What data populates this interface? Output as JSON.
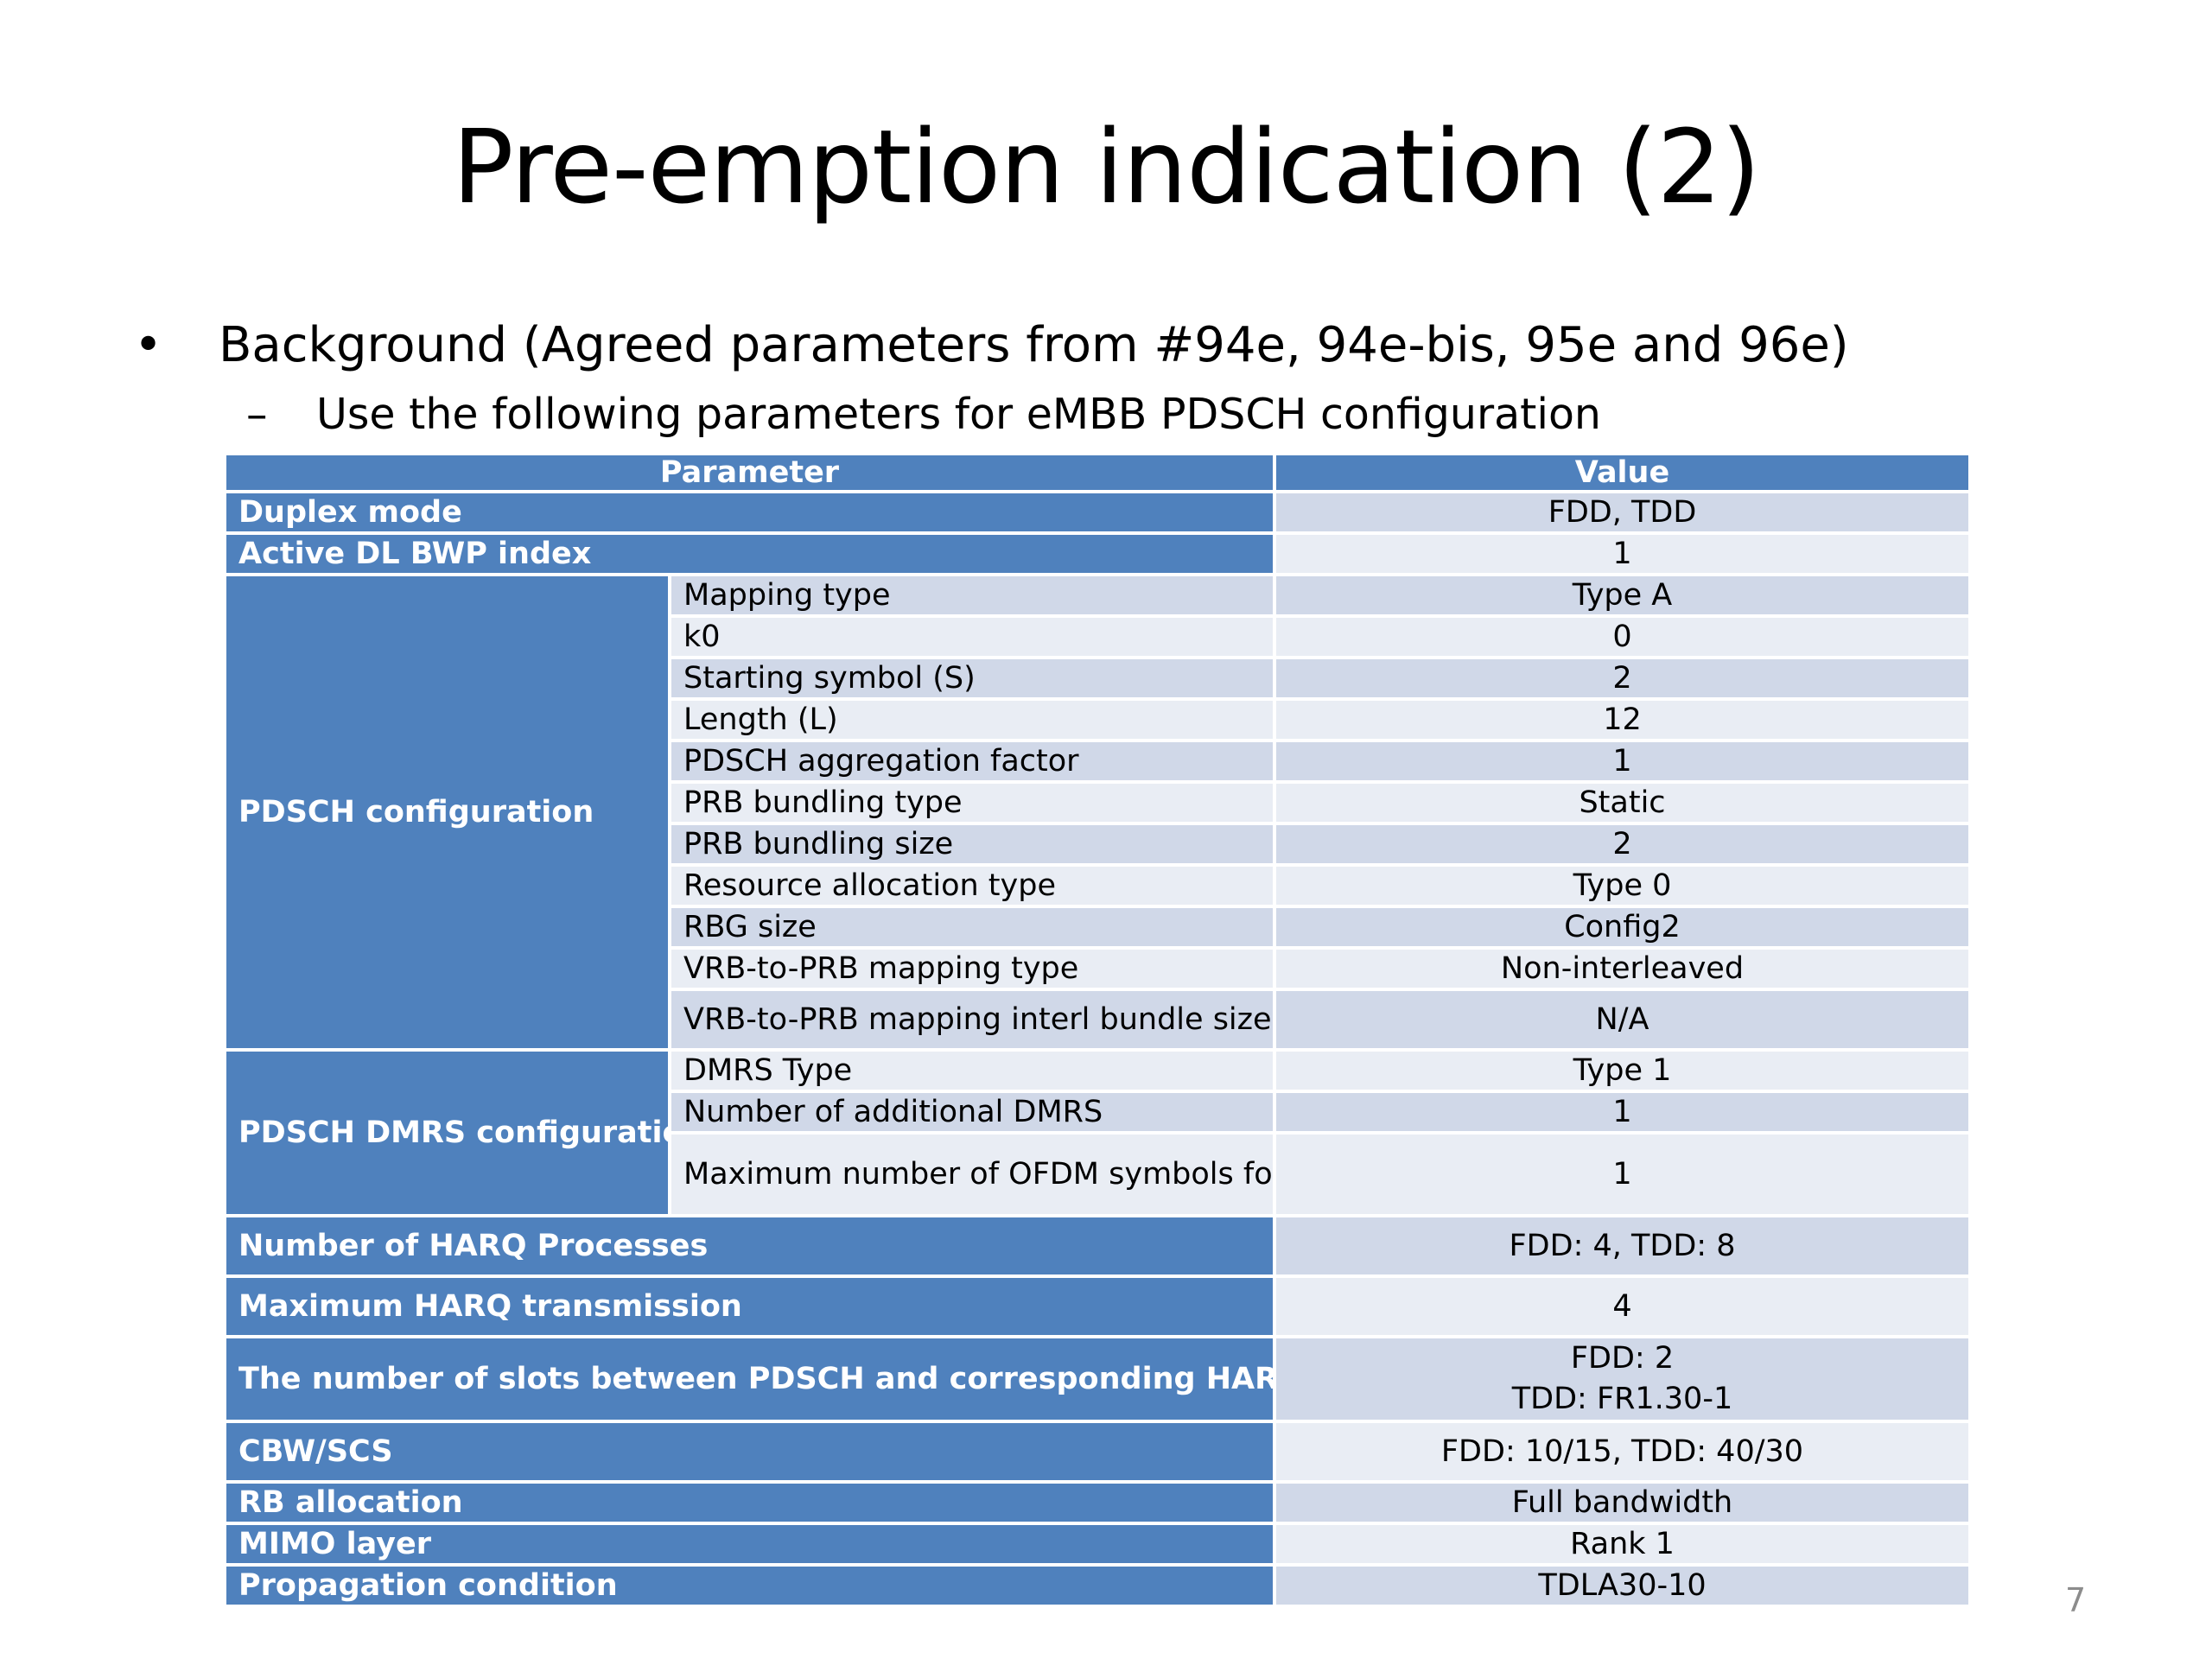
{
  "slide": {
    "title": "Pre-emption indication (2)",
    "bullet": "Background (Agreed parameters from #94e, 94e-bis, 95e and 96e)",
    "bullet_marker": "•",
    "sub_marker": "–",
    "sub_bullet": "Use the following parameters for eMBB PDSCH configuration",
    "page_number": "7"
  },
  "table": {
    "headers": {
      "parameter": "Parameter",
      "value": "Value"
    },
    "rows": {
      "duplex": {
        "label": "Duplex mode",
        "value": "FDD, TDD"
      },
      "bwp": {
        "label": "Active DL BWP index",
        "value": "1"
      },
      "pdsch": {
        "label": "PDSCH configuration",
        "items": [
          {
            "sub": "Mapping type",
            "value": "Type A"
          },
          {
            "sub": "k0",
            "value": "0"
          },
          {
            "sub": "Starting symbol (S)",
            "value": "2"
          },
          {
            "sub": "Length (L)",
            "value": "12"
          },
          {
            "sub": "PDSCH aggregation factor",
            "value": "1"
          },
          {
            "sub": "PRB bundling type",
            "value": "Static"
          },
          {
            "sub": "PRB bundling size",
            "value": "2"
          },
          {
            "sub": "Resource allocation type",
            "value": "Type 0"
          },
          {
            "sub": "RBG size",
            "value": "Config2"
          },
          {
            "sub": "VRB-to-PRB mapping type",
            "value": "Non-interleaved"
          },
          {
            "sub": "VRB-to-PRB mapping interl bundle size",
            "value": "N/A"
          }
        ]
      },
      "dmrs": {
        "label": "PDSCH DMRS configuration",
        "items": [
          {
            "sub": "DMRS Type",
            "value": "Type 1"
          },
          {
            "sub": "Number of additional DMRS",
            "value": "1"
          },
          {
            "sub": "Maximum number of OFDM symbols for DL front loaded DMRS",
            "value": "1"
          }
        ]
      },
      "harq_proc": {
        "label": "Number of HARQ Processes",
        "value": "FDD: 4, TDD: 8"
      },
      "harq_tx": {
        "label": "Maximum HARQ transmission",
        "value": "4"
      },
      "slots": {
        "label": "The number of slots between PDSCH and corresponding HARQ-ACK information and TDD pattern",
        "value_line1": "FDD: 2",
        "value_line2": "TDD: FR1.30-1"
      },
      "cbw": {
        "label": "CBW/SCS",
        "value": "FDD: 10/15, TDD: 40/30"
      },
      "rb": {
        "label": "RB allocation",
        "value": "Full bandwidth"
      },
      "mimo": {
        "label": "MIMO layer",
        "value": "Rank 1"
      },
      "prop": {
        "label": "Propagation condition",
        "value": "TDLA30-10"
      }
    }
  }
}
